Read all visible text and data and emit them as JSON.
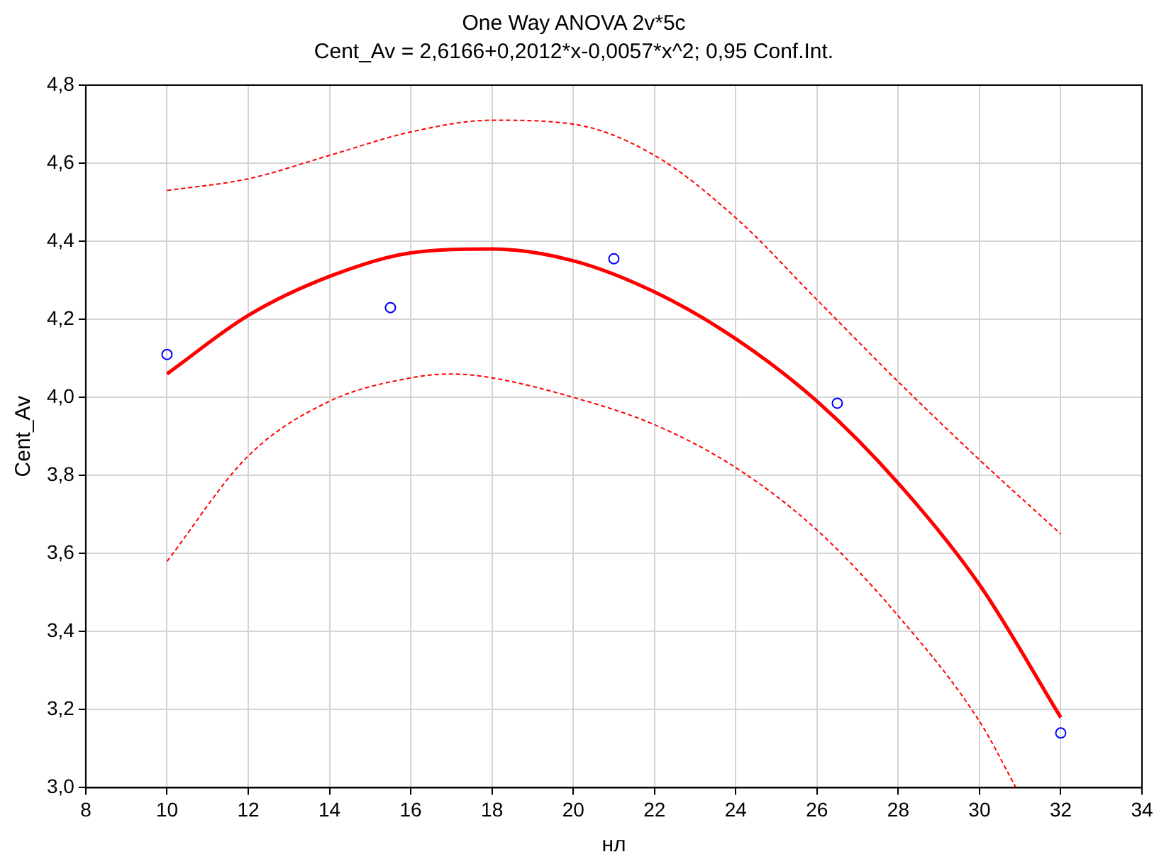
{
  "chart_data": {
    "type": "line",
    "title": "One Way ANOVA 2v*5c",
    "subtitle": "Cent_Av = 2,6166+0,2012*x-0,0057*x^2; 0,95 Conf.Int.",
    "xlabel": "нл",
    "ylabel": "Cent_Av",
    "xlim": [
      8,
      34
    ],
    "xticks": [
      {
        "value": 8,
        "label": "8"
      },
      {
        "value": 10,
        "label": "10"
      },
      {
        "value": 12,
        "label": "12"
      },
      {
        "value": 14,
        "label": "14"
      },
      {
        "value": 16,
        "label": "16"
      },
      {
        "value": 18,
        "label": "18"
      },
      {
        "value": 20,
        "label": "20"
      },
      {
        "value": 22,
        "label": "22"
      },
      {
        "value": 24,
        "label": "24"
      },
      {
        "value": 26,
        "label": "26"
      },
      {
        "value": 28,
        "label": "28"
      },
      {
        "value": 30,
        "label": "30"
      },
      {
        "value": 32,
        "label": "32"
      },
      {
        "value": 34,
        "label": "34"
      }
    ],
    "ylim": [
      3.0,
      4.8
    ],
    "yticks": [
      {
        "value": 3.0,
        "label": "3,0"
      },
      {
        "value": 3.2,
        "label": "3,2"
      },
      {
        "value": 3.4,
        "label": "3,4"
      },
      {
        "value": 3.6,
        "label": "3,6"
      },
      {
        "value": 3.8,
        "label": "3,8"
      },
      {
        "value": 4.0,
        "label": "4,0"
      },
      {
        "value": 4.2,
        "label": "4,2"
      },
      {
        "value": 4.4,
        "label": "4,4"
      },
      {
        "value": 4.6,
        "label": "4,6"
      },
      {
        "value": 4.8,
        "label": "4,8"
      }
    ],
    "grid": true,
    "legend": false,
    "series": [
      {
        "color": "#ff0000",
        "line_style": "solid",
        "marker": "none",
        "x": [
          10,
          12,
          14,
          16,
          18,
          20,
          22,
          24,
          26,
          28,
          30,
          32
        ],
        "values": [
          4.06,
          4.21,
          4.31,
          4.37,
          4.38,
          4.35,
          4.27,
          4.15,
          3.99,
          3.78,
          3.52,
          3.18
        ]
      },
      {
        "color": "#ff0000",
        "line_style": "dashed",
        "marker": "none",
        "x": [
          10,
          12,
          14,
          16,
          18,
          20,
          22,
          24,
          26,
          28,
          30,
          32
        ],
        "values": [
          4.53,
          4.56,
          4.62,
          4.68,
          4.71,
          4.7,
          4.62,
          4.46,
          4.25,
          4.04,
          3.84,
          3.65
        ]
      },
      {
        "color": "#ff0000",
        "line_style": "dashed",
        "marker": "none",
        "x": [
          10,
          12,
          14,
          16,
          17,
          18,
          20,
          22,
          24,
          26,
          28,
          30,
          30.9
        ],
        "values": [
          3.58,
          3.85,
          3.99,
          4.05,
          4.06,
          4.05,
          4.0,
          3.93,
          3.82,
          3.66,
          3.44,
          3.17,
          3.0
        ]
      },
      {
        "type": "scatter",
        "color": "#0000ff",
        "marker": "circle",
        "x": [
          10,
          15.5,
          21,
          26.5,
          32
        ],
        "values": [
          4.11,
          4.23,
          4.355,
          3.985,
          3.14
        ]
      }
    ]
  }
}
